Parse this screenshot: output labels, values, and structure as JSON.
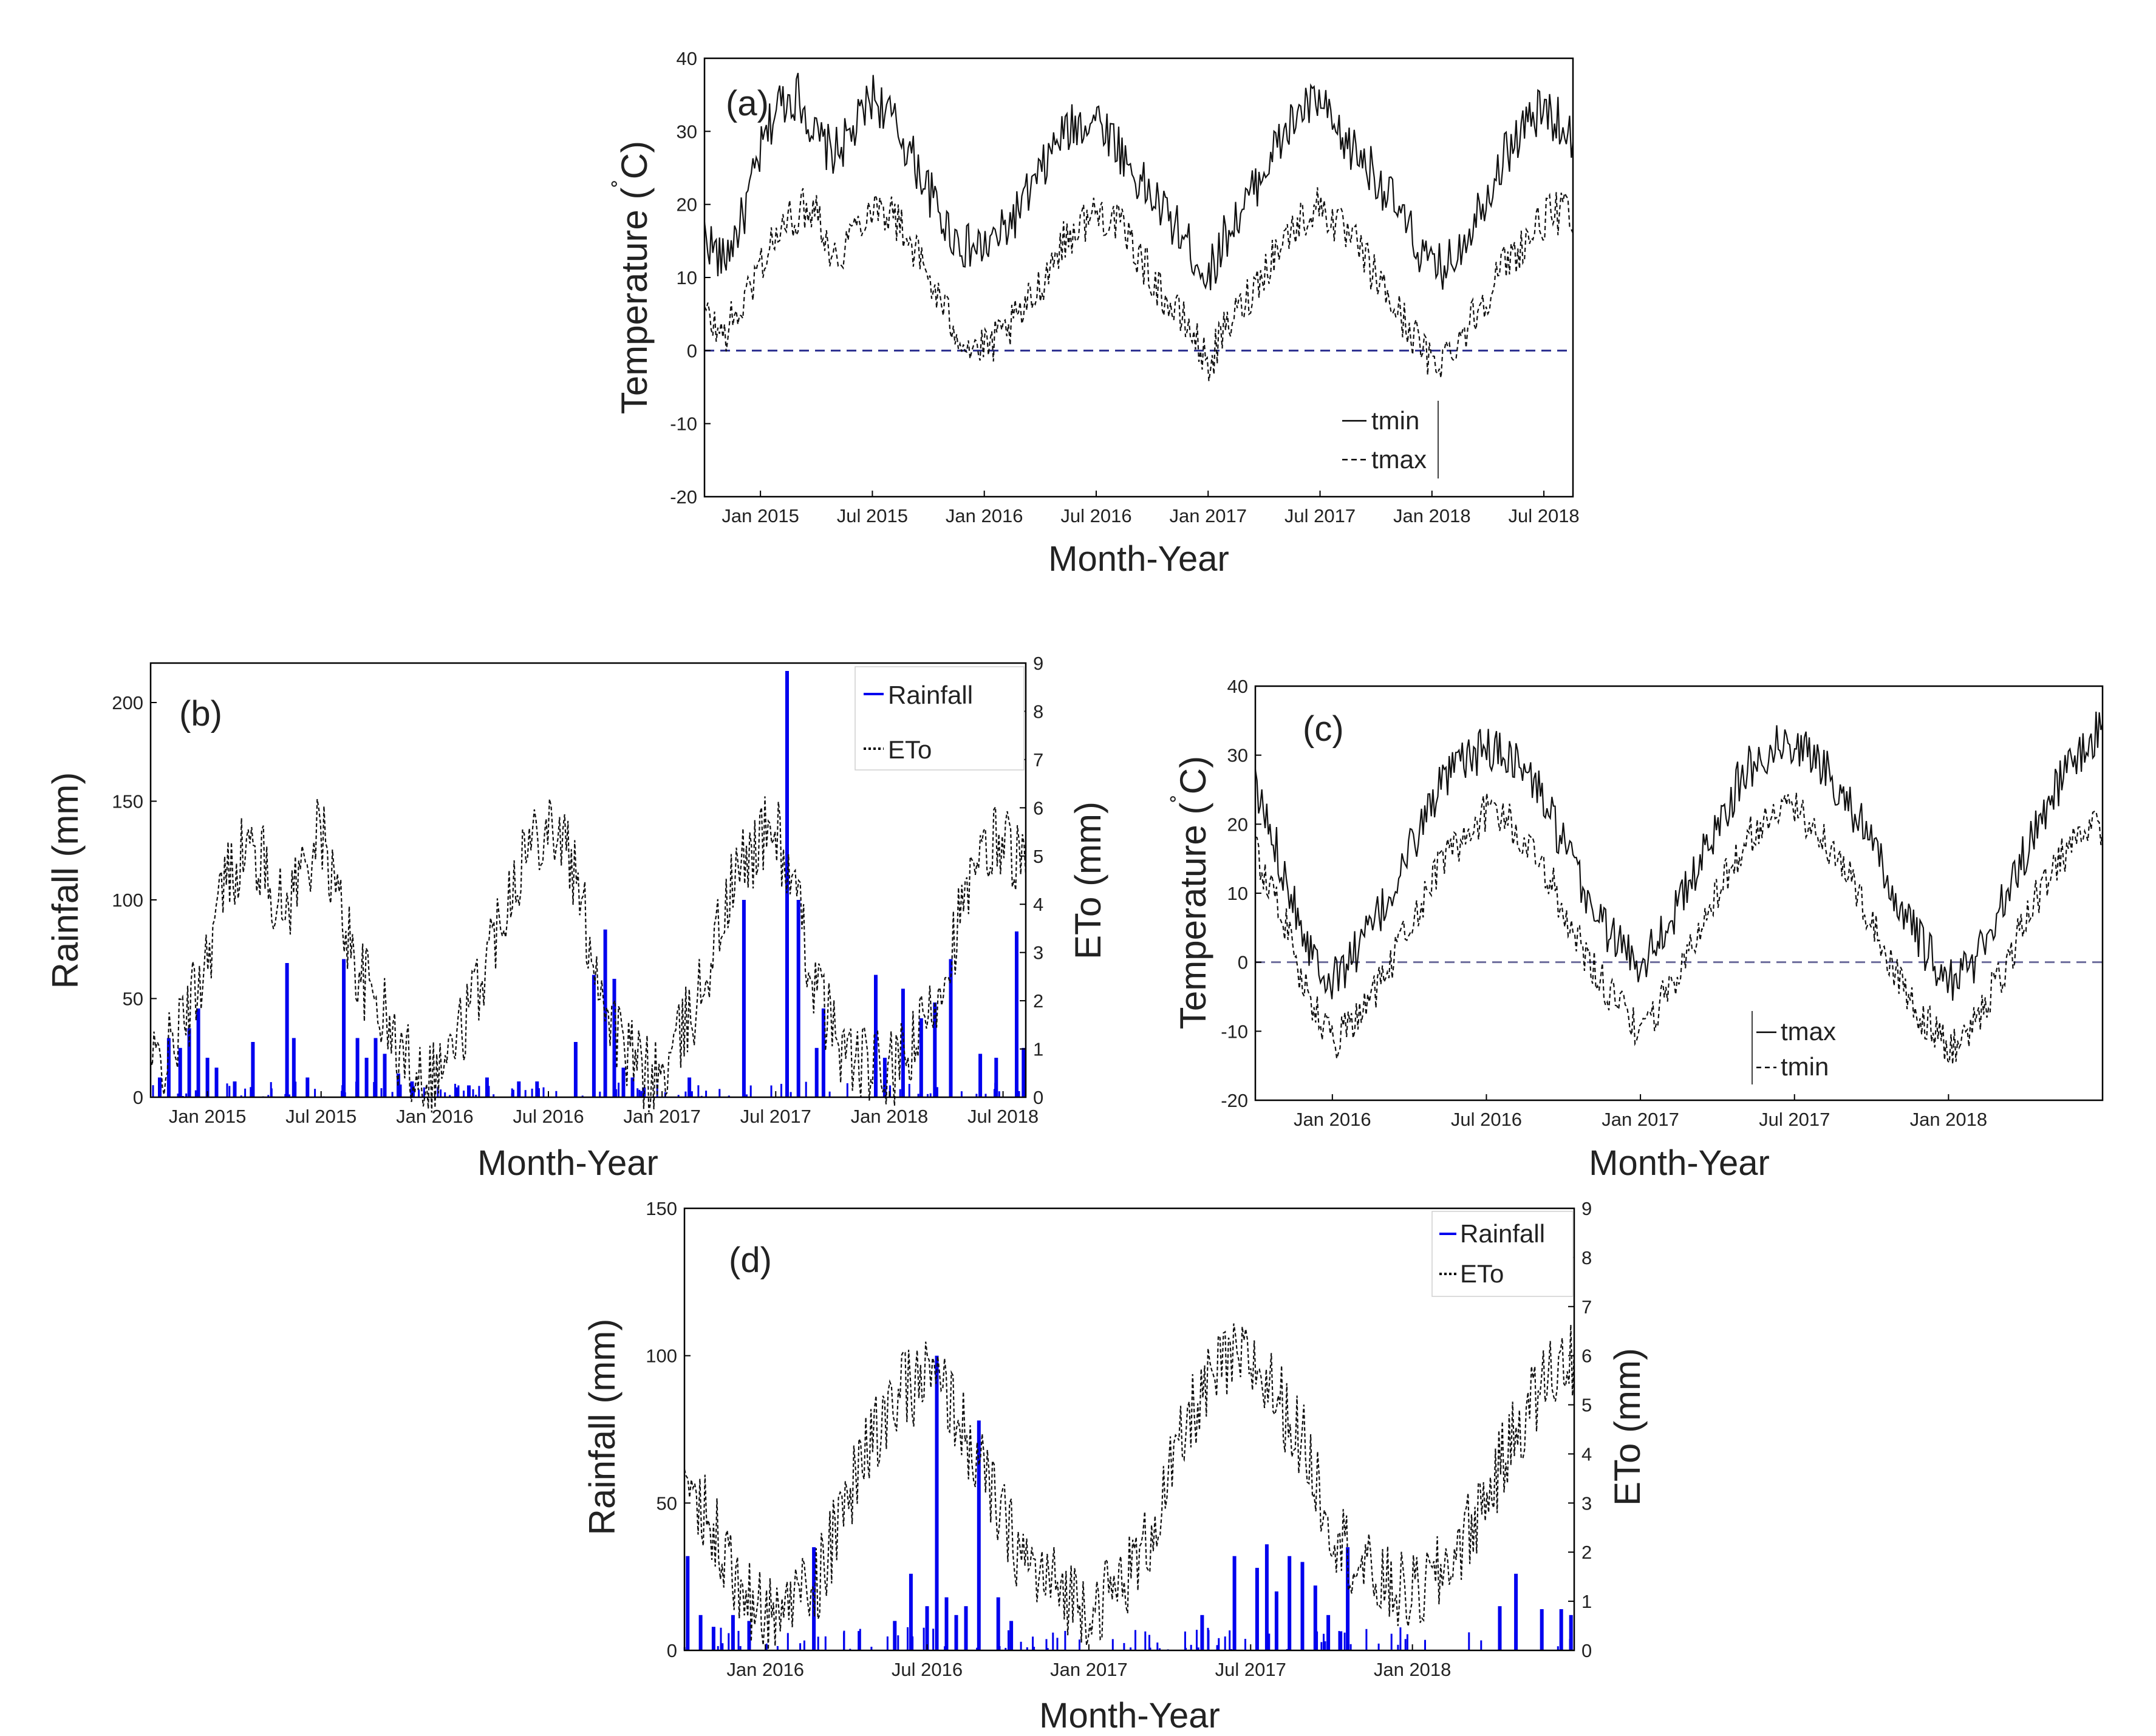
{
  "chart_data": [
    {
      "panel": "(a)",
      "type": "line",
      "xlabel": "Month-Year",
      "ylabel": "Temperature (˚C)",
      "ylabel_main": "Temperature (",
      "ylabel_deg": "˚",
      "ylabel_unit": "C)",
      "ylim": [
        -20,
        40
      ],
      "yticks": [
        "40",
        "30",
        "20",
        "10",
        "0",
        "-10",
        "-20"
      ],
      "xlim": [
        2014.75,
        2018.63
      ],
      "xticks": [
        {
          "label": "Jan 2015",
          "x": 2015.0
        },
        {
          "label": "Jul 2015",
          "x": 2015.5
        },
        {
          "label": "Jan 2016",
          "x": 2016.0
        },
        {
          "label": "Jul 2016",
          "x": 2016.5
        },
        {
          "label": "Jan 2017",
          "x": 2017.0
        },
        {
          "label": "Jul 2017",
          "x": 2017.5
        },
        {
          "label": "Jan 2018",
          "x": 2018.0
        },
        {
          "label": "Jul 2018",
          "x": 2018.5
        }
      ],
      "reference_line": 0,
      "legend": [
        {
          "name": "tmin",
          "style": "solid"
        },
        {
          "name": "tmax",
          "style": "dashed"
        }
      ],
      "series": [
        {
          "name": "tmin",
          "style": "solid",
          "x": [
            2014.75,
            2014.83,
            2014.92,
            2015.0,
            2015.08,
            2015.17,
            2015.25,
            2015.33,
            2015.42,
            2015.5,
            2015.58,
            2015.67,
            2015.75,
            2015.83,
            2015.92,
            2016.0,
            2016.08,
            2016.17,
            2016.25,
            2016.33,
            2016.42,
            2016.5,
            2016.58,
            2016.67,
            2016.75,
            2016.83,
            2016.92,
            2017.0,
            2017.08,
            2017.17,
            2017.25,
            2017.33,
            2017.42,
            2017.5,
            2017.58,
            2017.67,
            2017.75,
            2017.83,
            2017.92,
            2018.0,
            2018.08,
            2018.17,
            2018.25,
            2018.33,
            2018.42,
            2018.5,
            2018.58,
            2018.63
          ],
          "values": [
            16,
            12,
            18,
            27,
            34,
            35,
            29,
            27,
            30,
            35,
            32,
            27,
            22,
            17,
            14,
            14,
            16,
            20,
            24,
            29,
            31,
            32,
            29,
            24,
            21,
            18,
            14,
            10,
            16,
            20,
            25,
            29,
            33,
            34,
            29,
            27,
            24,
            20,
            15,
            11,
            12,
            17,
            22,
            27,
            31,
            33,
            31,
            29
          ]
        },
        {
          "name": "tmax",
          "style": "dashed",
          "x": [
            2014.75,
            2014.83,
            2014.92,
            2015.0,
            2015.08,
            2015.17,
            2015.25,
            2015.33,
            2015.42,
            2015.5,
            2015.58,
            2015.67,
            2015.75,
            2015.83,
            2015.92,
            2016.0,
            2016.08,
            2016.17,
            2016.25,
            2016.33,
            2016.42,
            2016.5,
            2016.58,
            2016.67,
            2016.75,
            2016.83,
            2016.92,
            2017.0,
            2017.08,
            2017.17,
            2017.25,
            2017.33,
            2017.42,
            2017.5,
            2017.58,
            2017.67,
            2017.75,
            2017.83,
            2017.92,
            2018.0,
            2018.08,
            2018.17,
            2018.25,
            2018.33,
            2018.42,
            2018.5,
            2018.58,
            2018.63
          ],
          "values": [
            5,
            2,
            6,
            12,
            16,
            19,
            20,
            12,
            17,
            20,
            19,
            15,
            10,
            5,
            1,
            0,
            2,
            5,
            9,
            14,
            17,
            19,
            18,
            14,
            10,
            6,
            3,
            -2,
            3,
            7,
            11,
            15,
            18,
            20,
            17,
            14,
            10,
            6,
            2,
            -2,
            0,
            4,
            8,
            12,
            15,
            18,
            19,
            18
          ]
        }
      ]
    },
    {
      "panel": "(b)",
      "type": "bar+line",
      "xlabel": "Month-Year",
      "ylabel": "Rainfall (mm)",
      "ylabel_right": "ETo (mm)",
      "ylim": [
        0,
        220
      ],
      "yticks": [
        "0",
        "50",
        "100",
        "150",
        "200"
      ],
      "ylim_right": [
        0,
        9
      ],
      "yticks_right": [
        "0",
        "1",
        "2",
        "3",
        "4",
        "5",
        "6",
        "7",
        "8",
        "9"
      ],
      "xlim": [
        2014.75,
        2018.6
      ],
      "xticks": [
        {
          "label": "Jan 2015",
          "x": 2015.0
        },
        {
          "label": "Jul 2015",
          "x": 2015.5
        },
        {
          "label": "Jan 2016",
          "x": 2016.0
        },
        {
          "label": "Jul 2016",
          "x": 2016.5
        },
        {
          "label": "Jan 2017",
          "x": 2017.0
        },
        {
          "label": "Jul 2017",
          "x": 2017.5
        },
        {
          "label": "Jan 2018",
          "x": 2018.0
        },
        {
          "label": "Jul 2018",
          "x": 2018.5
        }
      ],
      "legend": [
        {
          "name": "Rainfall",
          "style": "solid-blue"
        },
        {
          "name": "ETo",
          "style": "dotted"
        }
      ],
      "rainfall": {
        "x": [
          2014.79,
          2014.83,
          2014.88,
          2014.92,
          2014.96,
          2015.0,
          2015.04,
          2015.12,
          2015.2,
          2015.35,
          2015.38,
          2015.44,
          2015.6,
          2015.66,
          2015.7,
          2015.74,
          2015.78,
          2015.84,
          2015.9,
          2016.1,
          2016.15,
          2016.23,
          2016.37,
          2016.45,
          2016.62,
          2016.7,
          2016.75,
          2016.79,
          2016.83,
          2016.87,
          2016.92,
          2017.12,
          2017.36,
          2017.55,
          2017.6,
          2017.68,
          2017.71,
          2017.94,
          2017.98,
          2018.06,
          2018.14,
          2018.2,
          2018.27,
          2018.4,
          2018.47,
          2018.56,
          2018.59
        ],
        "values": [
          10,
          30,
          25,
          35,
          45,
          20,
          15,
          8,
          28,
          68,
          30,
          10,
          70,
          30,
          20,
          30,
          22,
          12,
          8,
          5,
          6,
          10,
          8,
          8,
          28,
          62,
          85,
          60,
          15,
          10,
          5,
          10,
          100,
          216,
          100,
          25,
          45,
          62,
          20,
          55,
          40,
          48,
          70,
          22,
          20,
          84,
          25
        ]
      },
      "eto": {
        "x": [
          2014.75,
          2014.83,
          2014.92,
          2015.0,
          2015.08,
          2015.17,
          2015.25,
          2015.33,
          2015.42,
          2015.5,
          2015.58,
          2015.67,
          2015.75,
          2015.83,
          2015.92,
          2016.0,
          2016.08,
          2016.17,
          2016.25,
          2016.33,
          2016.42,
          2016.5,
          2016.58,
          2016.67,
          2016.75,
          2016.83,
          2016.92,
          2017.0,
          2017.08,
          2017.17,
          2017.25,
          2017.33,
          2017.42,
          2017.5,
          2017.58,
          2017.67,
          2017.75,
          2017.83,
          2017.92,
          2018.0,
          2018.08,
          2018.17,
          2018.25,
          2018.33,
          2018.42,
          2018.5,
          2018.58,
          2018.6
        ],
        "values": [
          0.6,
          0.9,
          1.8,
          3.0,
          4.5,
          5.2,
          4.8,
          3.8,
          4.8,
          5.5,
          4.0,
          2.5,
          2.0,
          1.0,
          0.6,
          0.5,
          1.0,
          2.0,
          3.2,
          4.4,
          5.3,
          5.8,
          5.2,
          3.5,
          2.0,
          1.0,
          0.5,
          0.4,
          1.2,
          2.2,
          3.5,
          4.6,
          5.3,
          5.6,
          4.2,
          2.4,
          1.4,
          0.8,
          0.6,
          0.5,
          0.8,
          1.6,
          2.8,
          4.0,
          5.0,
          5.5,
          4.8,
          4.5
        ]
      }
    },
    {
      "panel": "(c)",
      "type": "line",
      "xlabel": "Month-Year",
      "ylabel": "Temperature (˚C)",
      "ylabel_main": "Temperature (",
      "ylabel_deg": "˚",
      "ylabel_unit": "C)",
      "ylim": [
        -20,
        40
      ],
      "yticks": [
        "40",
        "30",
        "20",
        "10",
        "0",
        "-10",
        "-20"
      ],
      "xlim": [
        2015.75,
        2018.5
      ],
      "xticks": [
        {
          "label": "Jan 2016",
          "x": 2016.0
        },
        {
          "label": "Jul 2016",
          "x": 2016.5
        },
        {
          "label": "Jan 2017",
          "x": 2017.0
        },
        {
          "label": "Jul 2017",
          "x": 2017.5
        },
        {
          "label": "Jan 2018",
          "x": 2018.0
        }
      ],
      "reference_line": 0,
      "legend": [
        {
          "name": "tmax",
          "style": "solid"
        },
        {
          "name": "tmin",
          "style": "dashed"
        }
      ],
      "series": [
        {
          "name": "tmax",
          "style": "solid",
          "x": [
            2015.75,
            2015.83,
            2015.92,
            2016.0,
            2016.08,
            2016.17,
            2016.25,
            2016.33,
            2016.42,
            2016.5,
            2016.58,
            2016.67,
            2016.75,
            2016.83,
            2016.92,
            2017.0,
            2017.08,
            2017.17,
            2017.25,
            2017.33,
            2017.42,
            2017.5,
            2017.58,
            2017.67,
            2017.75,
            2017.83,
            2017.92,
            2018.0,
            2018.08,
            2018.17,
            2018.25,
            2018.33,
            2018.42,
            2018.5
          ],
          "values": [
            25,
            15,
            3,
            -3,
            2,
            8,
            16,
            24,
            29,
            31,
            30,
            25,
            17,
            9,
            3,
            0,
            5,
            12,
            20,
            27,
            31,
            32,
            29,
            24,
            17,
            9,
            2,
            -3,
            0,
            8,
            16,
            24,
            30,
            34
          ]
        },
        {
          "name": "tmin",
          "style": "dashed",
          "x": [
            2015.75,
            2015.83,
            2015.92,
            2016.0,
            2016.08,
            2016.17,
            2016.25,
            2016.33,
            2016.42,
            2016.5,
            2016.58,
            2016.67,
            2016.75,
            2016.83,
            2016.92,
            2017.0,
            2017.08,
            2017.17,
            2017.25,
            2017.33,
            2017.42,
            2017.5,
            2017.58,
            2017.67,
            2017.75,
            2017.83,
            2017.92,
            2018.0,
            2018.08,
            2018.17,
            2018.25,
            2018.33,
            2018.42,
            2018.5
          ],
          "values": [
            16,
            8,
            -5,
            -12,
            -8,
            -2,
            5,
            13,
            18,
            22,
            20,
            15,
            8,
            0,
            -6,
            -10,
            -5,
            3,
            10,
            17,
            21,
            22,
            19,
            13,
            6,
            -2,
            -8,
            -13,
            -9,
            -2,
            6,
            13,
            18,
            20
          ]
        }
      ]
    },
    {
      "panel": "(d)",
      "type": "bar+line",
      "xlabel": "Month-Year",
      "ylabel": "Rainfall (mm)",
      "ylabel_right": "ETo (mm)",
      "ylim": [
        0,
        150
      ],
      "yticks": [
        "0",
        "50",
        "100",
        "150"
      ],
      "ylim_right": [
        0,
        9
      ],
      "yticks_right": [
        "0",
        "1",
        "2",
        "3",
        "4",
        "5",
        "6",
        "7",
        "8",
        "9"
      ],
      "xlim": [
        2015.75,
        2018.5
      ],
      "xticks": [
        {
          "label": "Jan 2016",
          "x": 2016.0
        },
        {
          "label": "Jul 2016",
          "x": 2016.5
        },
        {
          "label": "Jan 2017",
          "x": 2017.0
        },
        {
          "label": "Jul 2017",
          "x": 2017.5
        },
        {
          "label": "Jan 2018",
          "x": 2018.0
        }
      ],
      "legend": [
        {
          "name": "Rainfall",
          "style": "solid-blue"
        },
        {
          "name": "ETo",
          "style": "dotted"
        }
      ],
      "rainfall": {
        "x": [
          2015.76,
          2015.8,
          2015.84,
          2015.9,
          2015.95,
          2016.15,
          2016.4,
          2016.45,
          2016.5,
          2016.53,
          2016.56,
          2016.59,
          2016.62,
          2016.66,
          2016.72,
          2016.76,
          2017.35,
          2017.45,
          2017.52,
          2017.55,
          2017.58,
          2017.62,
          2017.66,
          2017.7,
          2017.74,
          2017.8,
          2018.27,
          2018.32,
          2018.4,
          2018.46,
          2018.49
        ],
        "values": [
          32,
          12,
          8,
          12,
          10,
          35,
          10,
          26,
          15,
          100,
          18,
          12,
          15,
          78,
          18,
          10,
          12,
          32,
          28,
          36,
          20,
          32,
          30,
          22,
          12,
          35,
          15,
          26,
          14,
          14,
          12
        ]
      },
      "eto": {
        "x": [
          2015.75,
          2015.8,
          2015.85,
          2015.92,
          2016.0,
          2016.08,
          2016.17,
          2016.25,
          2016.33,
          2016.42,
          2016.5,
          2016.58,
          2016.67,
          2016.75,
          2016.83,
          2016.92,
          2017.0,
          2017.08,
          2017.17,
          2017.25,
          2017.33,
          2017.42,
          2017.5,
          2017.58,
          2017.67,
          2017.75,
          2017.83,
          2017.92,
          2018.0,
          2018.08,
          2018.17,
          2018.25,
          2018.33,
          2018.42,
          2018.5
        ],
        "values": [
          3.5,
          3.0,
          2.5,
          1.2,
          0.7,
          1.0,
          1.5,
          3.0,
          4.3,
          5.2,
          5.6,
          5.0,
          3.6,
          2.4,
          1.6,
          1.2,
          0.9,
          1.2,
          2.0,
          3.5,
          5.0,
          5.8,
          5.9,
          5.2,
          4.1,
          2.6,
          1.7,
          1.3,
          1.1,
          1.5,
          2.4,
          3.4,
          4.6,
          5.6,
          6.0
        ]
      }
    }
  ]
}
